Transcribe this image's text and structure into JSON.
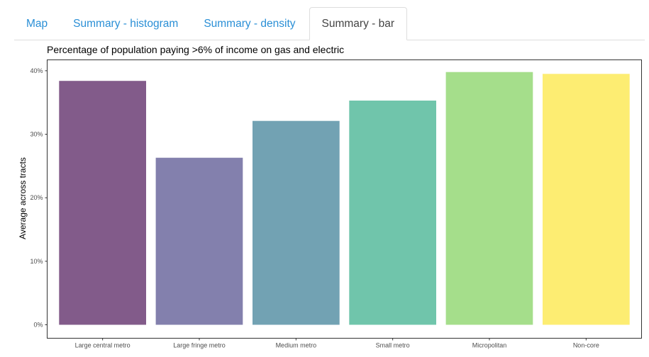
{
  "tabs": [
    {
      "label": "Map",
      "active": false
    },
    {
      "label": "Summary - histogram",
      "active": false
    },
    {
      "label": "Summary - density",
      "active": false
    },
    {
      "label": "Summary - bar",
      "active": true
    }
  ],
  "chart_data": {
    "type": "bar",
    "title": "Percentage of population paying >6% of income on gas and electric",
    "xlabel": "",
    "ylabel": "Average across tracts",
    "categories": [
      "Large central metro",
      "Large fringe metro",
      "Medium metro",
      "Small metro",
      "Micropolitan",
      "Non-core"
    ],
    "values": [
      38.4,
      26.3,
      32.1,
      35.3,
      39.8,
      39.5
    ],
    "colors": [
      "#825b8a",
      "#8380ad",
      "#72a2b3",
      "#70c5ab",
      "#a5de8b",
      "#fded72"
    ],
    "yticks": [
      "0%",
      "10%",
      "20%",
      "30%",
      "40%"
    ],
    "ylim": [
      0,
      41.5
    ],
    "grid": false,
    "legend": "none"
  }
}
